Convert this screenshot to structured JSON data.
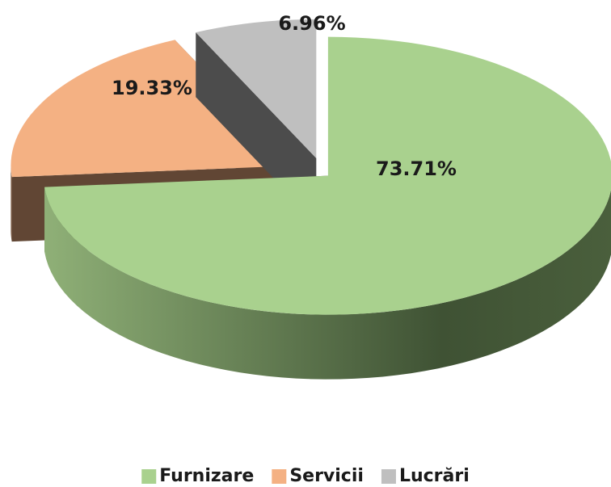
{
  "chart_data": {
    "type": "pie",
    "categories": [
      "Furnizare",
      "Servicii",
      "Lucrări"
    ],
    "values": [
      73.71,
      19.33,
      6.96
    ],
    "value_labels": [
      "73.71%",
      "19.33%",
      "6.96%"
    ],
    "colors": [
      "#a9d18e",
      "#f4b183",
      "#bfbfbf"
    ],
    "legend": "bottom"
  }
}
